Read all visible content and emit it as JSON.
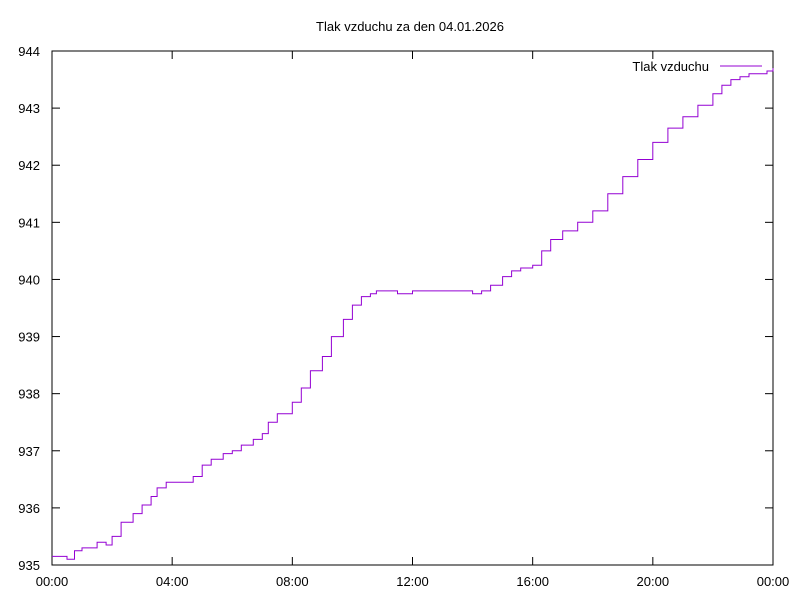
{
  "chart_data": {
    "type": "line",
    "title": "Tlak vzduchu za den 04.01.2026",
    "xlabel": "",
    "ylabel": "",
    "xlim": [
      0,
      24
    ],
    "ylim": [
      935,
      944
    ],
    "x_ticks": [
      "00:00",
      "04:00",
      "08:00",
      "12:00",
      "16:00",
      "20:00",
      "00:00"
    ],
    "y_ticks": [
      "935",
      "936",
      "937",
      "938",
      "939",
      "940",
      "941",
      "942",
      "943",
      "944"
    ],
    "grid": false,
    "legend_position": "top-right",
    "series": [
      {
        "name": "Tlak vzduchu",
        "color": "#9400d3",
        "x": [
          0.0,
          0.5,
          0.75,
          1.0,
          1.5,
          1.8,
          2.0,
          2.3,
          2.7,
          3.0,
          3.3,
          3.5,
          3.8,
          4.0,
          4.3,
          4.7,
          5.0,
          5.3,
          5.7,
          6.0,
          6.3,
          6.7,
          7.0,
          7.2,
          7.5,
          8.0,
          8.3,
          8.6,
          9.0,
          9.3,
          9.7,
          10.0,
          10.3,
          10.6,
          10.8,
          11.0,
          11.5,
          12.0,
          12.5,
          13.0,
          13.5,
          14.0,
          14.3,
          14.6,
          15.0,
          15.3,
          15.6,
          16.0,
          16.3,
          16.6,
          17.0,
          17.5,
          18.0,
          18.5,
          19.0,
          19.5,
          20.0,
          20.5,
          21.0,
          21.5,
          22.0,
          22.3,
          22.6,
          22.9,
          23.2,
          23.5,
          23.8,
          24.0
        ],
        "y": [
          935.15,
          935.1,
          935.25,
          935.3,
          935.4,
          935.35,
          935.5,
          935.75,
          935.9,
          936.05,
          936.2,
          936.35,
          936.45,
          936.45,
          936.45,
          936.55,
          936.75,
          936.85,
          936.95,
          937.0,
          937.1,
          937.2,
          937.3,
          937.5,
          937.65,
          937.85,
          938.1,
          938.4,
          938.65,
          939.0,
          939.3,
          939.55,
          939.7,
          939.75,
          939.8,
          939.8,
          939.75,
          939.8,
          939.8,
          939.8,
          939.8,
          939.75,
          939.8,
          939.9,
          940.05,
          940.15,
          940.2,
          940.25,
          940.5,
          940.7,
          940.85,
          941.0,
          941.2,
          941.5,
          941.8,
          942.1,
          942.4,
          942.65,
          942.85,
          943.05,
          943.25,
          943.4,
          943.5,
          943.55,
          943.6,
          943.6,
          943.65,
          943.7
        ]
      }
    ]
  }
}
